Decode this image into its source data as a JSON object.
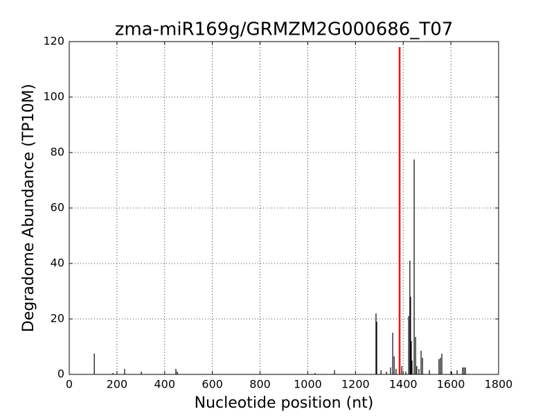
{
  "chart_data": {
    "type": "stem",
    "title": "zma-miR169g/GRMZM2G000686_T07",
    "xlabel": "Nucleotide position (nt)",
    "ylabel": "Degradome Abundance (TP10M)",
    "x": [
      105,
      183,
      232,
      302,
      447,
      453,
      1031,
      1112,
      1286,
      1289,
      1307,
      1330,
      1347,
      1356,
      1362,
      1370,
      1394,
      1411,
      1423,
      1428,
      1431,
      1434,
      1437,
      1446,
      1452,
      1457,
      1466,
      1475,
      1481,
      1510,
      1550,
      1556,
      1562,
      1603,
      1626,
      1649,
      1655,
      1661
    ],
    "values": [
      7.5,
      0.5,
      2,
      1,
      2,
      1,
      0.5,
      1.5,
      22,
      19,
      1.5,
      1,
      2.5,
      15,
      6.5,
      2,
      3,
      1,
      21,
      41,
      28,
      12,
      5,
      77.5,
      13.5,
      3,
      2,
      8.5,
      6,
      1.5,
      5.5,
      6,
      7.5,
      1,
      1.5,
      2.5,
      2.5,
      2.5
    ],
    "color": "#000000",
    "highlight": {
      "x": 1385,
      "value": 118,
      "color": "#ff0000"
    },
    "xlim": [
      0,
      1800
    ],
    "xticks": [
      0,
      200,
      400,
      600,
      800,
      1000,
      1200,
      1400,
      1600,
      1800
    ],
    "ylim": [
      0,
      120
    ],
    "yticks": [
      0,
      20,
      40,
      60,
      80,
      100,
      120
    ],
    "grid": true
  }
}
